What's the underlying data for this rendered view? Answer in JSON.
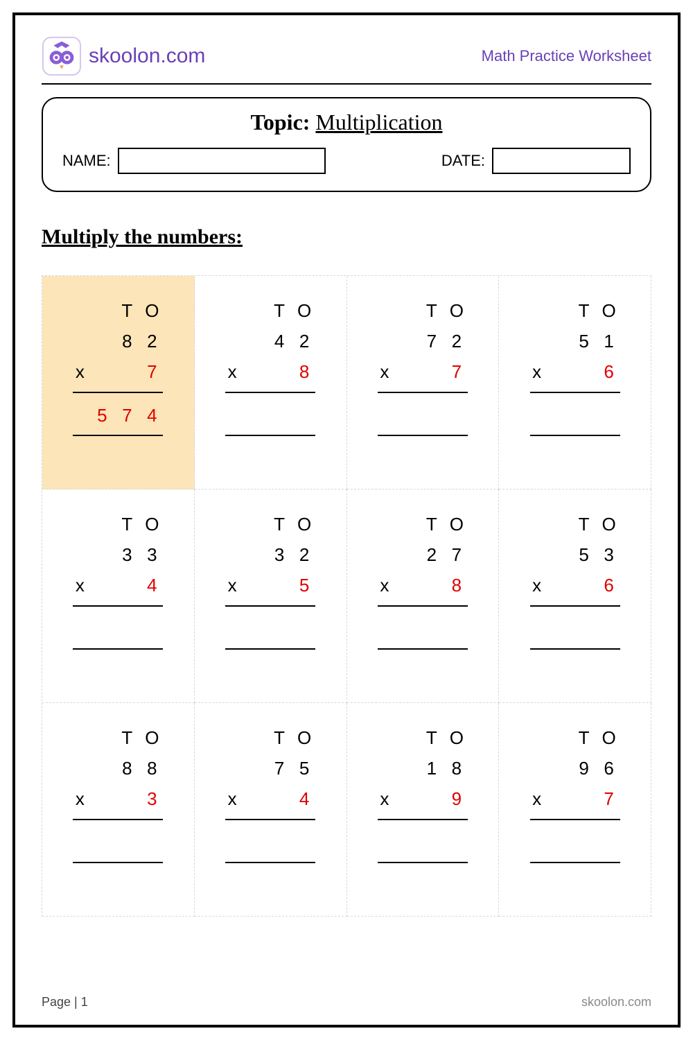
{
  "header": {
    "brand": "skoolon.com",
    "subtitle": "Math Practice Worksheet"
  },
  "topic": {
    "label": "Topic:",
    "value": "Multiplication",
    "name_label": "NAME:",
    "date_label": "DATE:"
  },
  "instruction": "Multiply the numbers:",
  "col_header": {
    "t": "T",
    "o": "O"
  },
  "operator": "x",
  "problems": [
    {
      "tens": "8",
      "ones": "2",
      "multiplier": "7",
      "highlight": true,
      "answer": [
        "5",
        "7",
        "4"
      ]
    },
    {
      "tens": "4",
      "ones": "2",
      "multiplier": "8",
      "highlight": false,
      "answer": null
    },
    {
      "tens": "7",
      "ones": "2",
      "multiplier": "7",
      "highlight": false,
      "answer": null
    },
    {
      "tens": "5",
      "ones": "1",
      "multiplier": "6",
      "highlight": false,
      "answer": null
    },
    {
      "tens": "3",
      "ones": "3",
      "multiplier": "4",
      "highlight": false,
      "answer": null
    },
    {
      "tens": "3",
      "ones": "2",
      "multiplier": "5",
      "highlight": false,
      "answer": null
    },
    {
      "tens": "2",
      "ones": "7",
      "multiplier": "8",
      "highlight": false,
      "answer": null
    },
    {
      "tens": "5",
      "ones": "3",
      "multiplier": "6",
      "highlight": false,
      "answer": null
    },
    {
      "tens": "8",
      "ones": "8",
      "multiplier": "3",
      "highlight": false,
      "answer": null
    },
    {
      "tens": "7",
      "ones": "5",
      "multiplier": "4",
      "highlight": false,
      "answer": null
    },
    {
      "tens": "1",
      "ones": "8",
      "multiplier": "9",
      "highlight": false,
      "answer": null
    },
    {
      "tens": "9",
      "ones": "6",
      "multiplier": "7",
      "highlight": false,
      "answer": null
    }
  ],
  "footer": {
    "page": "Page | 1",
    "site": "skoolon.com"
  },
  "colors": {
    "brand": "#6a3fb5",
    "accent": "#e00000",
    "highlight_bg": "#fce5b8"
  }
}
